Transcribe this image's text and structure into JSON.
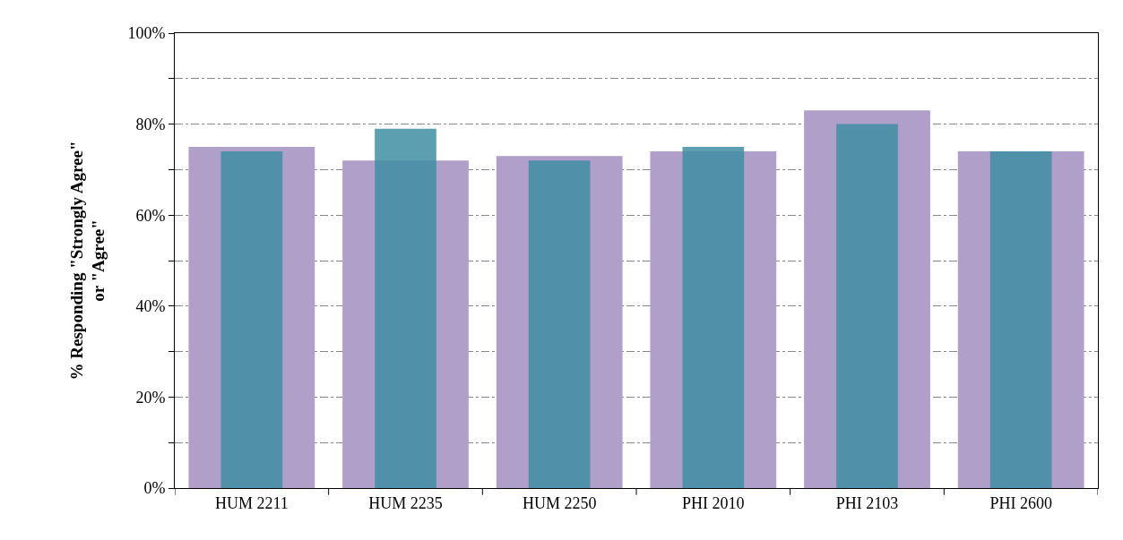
{
  "chart_data": {
    "type": "bar",
    "ylabel": "% Responding \"Strongly Agree\" or \"Agree\"",
    "categories": [
      "HUM 2211",
      "HUM 2235",
      "HUM 2250",
      "PHI 2010",
      "PHI 2103",
      "PHI 2600"
    ],
    "series": [
      {
        "color": "#b09fc9",
        "values": [
          75,
          72,
          73,
          74,
          83,
          74
        ]
      },
      {
        "color": "#3f8ea3",
        "values": [
          74,
          79,
          72,
          75,
          80,
          74
        ]
      }
    ],
    "ylim": [
      0,
      100
    ],
    "yticks": [
      {
        "value": 0,
        "label": "0%"
      },
      {
        "value": 10,
        "label": null
      },
      {
        "value": 20,
        "label": "20%"
      },
      {
        "value": 30,
        "label": null
      },
      {
        "value": 40,
        "label": "40%"
      },
      {
        "value": 50,
        "label": null
      },
      {
        "value": 60,
        "label": "60%"
      },
      {
        "value": 70,
        "label": null
      },
      {
        "value": 80,
        "label": "80%"
      },
      {
        "value": 90,
        "label": null
      },
      {
        "value": 100,
        "label": "100%"
      }
    ],
    "grid": true,
    "legend": false
  }
}
